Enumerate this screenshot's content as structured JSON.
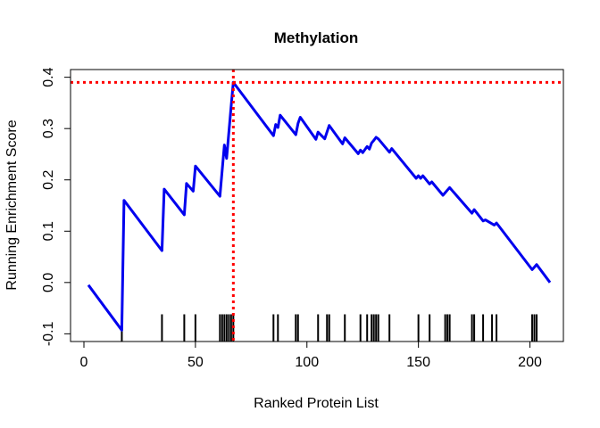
{
  "chart_data": {
    "type": "line",
    "title": "Methylation",
    "xlabel": "Ranked Protein List",
    "ylabel": "Running Enrichment Score",
    "xlim": [
      -6,
      215
    ],
    "ylim": [
      -0.115,
      0.415
    ],
    "xticks": [
      0,
      50,
      100,
      150,
      200
    ],
    "xtick_labels": [
      "0",
      "50",
      "100",
      "150",
      "200"
    ],
    "yticks": [
      -0.1,
      0.0,
      0.1,
      0.2,
      0.3,
      0.4
    ],
    "ytick_labels": [
      "-0.1",
      "0.0",
      "0.1",
      "0.2",
      "0.3",
      "0.4"
    ],
    "series": [
      {
        "color": "#0000ee",
        "x": [
          2,
          17,
          18,
          35,
          36,
          45,
          46,
          49,
          50,
          61,
          62,
          63,
          64,
          65,
          66,
          67,
          85,
          86,
          87,
          88,
          95,
          96,
          97,
          104,
          105,
          108,
          109,
          110,
          116,
          117,
          123,
          124,
          125,
          127,
          128,
          129,
          130,
          131,
          132,
          137,
          138,
          149,
          150,
          151,
          152,
          155,
          156,
          161,
          162,
          163,
          164,
          174,
          175,
          179,
          180,
          184,
          185,
          201,
          202,
          203,
          209
        ],
        "y": [
          -0.005,
          -0.093,
          0.16,
          0.062,
          0.182,
          0.132,
          0.193,
          0.178,
          0.227,
          0.168,
          0.218,
          0.268,
          0.242,
          0.292,
          0.342,
          0.39,
          0.286,
          0.308,
          0.302,
          0.326,
          0.288,
          0.31,
          0.322,
          0.279,
          0.293,
          0.28,
          0.293,
          0.306,
          0.27,
          0.282,
          0.251,
          0.258,
          0.253,
          0.265,
          0.26,
          0.272,
          0.277,
          0.283,
          0.28,
          0.254,
          0.261,
          0.203,
          0.208,
          0.203,
          0.208,
          0.192,
          0.196,
          0.17,
          0.175,
          0.18,
          0.185,
          0.135,
          0.142,
          0.12,
          0.122,
          0.112,
          0.116,
          0.025,
          0.03,
          0.035,
          0.0
        ]
      }
    ],
    "hits": [
      17,
      35,
      45,
      50,
      61,
      62,
      63,
      64,
      65,
      66,
      67,
      85,
      87,
      95,
      96,
      105,
      109,
      110,
      117,
      124,
      127,
      129,
      130,
      131,
      132,
      137,
      150,
      155,
      162,
      163,
      164,
      174,
      175,
      179,
      183,
      185,
      201,
      202,
      203
    ],
    "reference_lines": [
      {
        "orientation": "horizontal",
        "value": 0.39,
        "color": "#ff0000",
        "style": "dotted"
      },
      {
        "orientation": "vertical",
        "value": 67,
        "color": "#ff0000",
        "style": "dotted"
      }
    ],
    "grid": false,
    "legend": "none"
  }
}
